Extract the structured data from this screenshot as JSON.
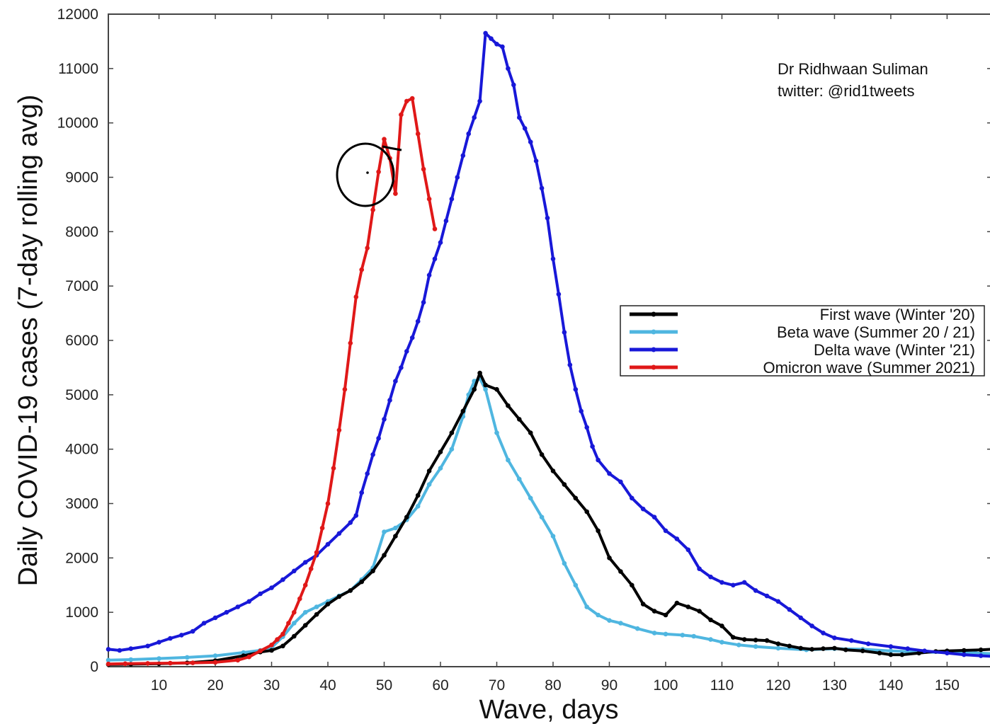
{
  "chart_data": {
    "type": "line",
    "title": "",
    "xlabel": "Wave, days",
    "ylabel": "Daily COVID-19 cases (7-day rolling avg)",
    "xlim": [
      1,
      158
    ],
    "ylim": [
      0,
      12000
    ],
    "xticks": [
      10,
      20,
      30,
      40,
      50,
      60,
      70,
      80,
      90,
      100,
      110,
      120,
      130,
      140,
      150
    ],
    "yticks": [
      0,
      1000,
      2000,
      3000,
      4000,
      5000,
      6000,
      7000,
      8000,
      9000,
      10000,
      11000,
      12000
    ],
    "grid": false,
    "legend_position": "right",
    "credit": [
      "Dr Ridhwaan Suliman",
      "twitter: @rid1tweets"
    ],
    "annotation": "hand-drawn circle around the first Omicron peak near day 47",
    "series": [
      {
        "name": "First wave (Winter '20)",
        "color": "#000000",
        "points": [
          [
            1,
            40
          ],
          [
            5,
            45
          ],
          [
            10,
            55
          ],
          [
            15,
            70
          ],
          [
            20,
            110
          ],
          [
            25,
            200
          ],
          [
            28,
            270
          ],
          [
            30,
            300
          ],
          [
            32,
            380
          ],
          [
            34,
            560
          ],
          [
            36,
            760
          ],
          [
            38,
            960
          ],
          [
            40,
            1150
          ],
          [
            42,
            1290
          ],
          [
            44,
            1400
          ],
          [
            46,
            1560
          ],
          [
            48,
            1760
          ],
          [
            50,
            2050
          ],
          [
            52,
            2400
          ],
          [
            54,
            2750
          ],
          [
            56,
            3150
          ],
          [
            58,
            3600
          ],
          [
            60,
            3950
          ],
          [
            62,
            4300
          ],
          [
            64,
            4700
          ],
          [
            66,
            5100
          ],
          [
            67,
            5400
          ],
          [
            68,
            5180
          ],
          [
            70,
            5100
          ],
          [
            72,
            4800
          ],
          [
            74,
            4550
          ],
          [
            76,
            4300
          ],
          [
            78,
            3900
          ],
          [
            80,
            3600
          ],
          [
            82,
            3350
          ],
          [
            84,
            3100
          ],
          [
            86,
            2850
          ],
          [
            88,
            2500
          ],
          [
            90,
            2000
          ],
          [
            92,
            1750
          ],
          [
            94,
            1500
          ],
          [
            96,
            1150
          ],
          [
            98,
            1020
          ],
          [
            100,
            950
          ],
          [
            102,
            1170
          ],
          [
            104,
            1100
          ],
          [
            106,
            1020
          ],
          [
            108,
            860
          ],
          [
            110,
            750
          ],
          [
            112,
            540
          ],
          [
            114,
            500
          ],
          [
            116,
            490
          ],
          [
            118,
            480
          ],
          [
            120,
            420
          ],
          [
            122,
            380
          ],
          [
            124,
            340
          ],
          [
            126,
            320
          ],
          [
            128,
            330
          ],
          [
            130,
            340
          ],
          [
            132,
            310
          ],
          [
            135,
            290
          ],
          [
            138,
            250
          ],
          [
            140,
            220
          ],
          [
            142,
            220
          ],
          [
            145,
            250
          ],
          [
            148,
            280
          ],
          [
            150,
            290
          ],
          [
            153,
            300
          ],
          [
            156,
            310
          ],
          [
            158,
            320
          ]
        ]
      },
      {
        "name": "Beta wave (Summer 20 / 21)",
        "color": "#4fb6e0",
        "points": [
          [
            1,
            120
          ],
          [
            5,
            130
          ],
          [
            10,
            150
          ],
          [
            15,
            170
          ],
          [
            20,
            200
          ],
          [
            25,
            260
          ],
          [
            28,
            300
          ],
          [
            30,
            350
          ],
          [
            32,
            550
          ],
          [
            34,
            800
          ],
          [
            36,
            1000
          ],
          [
            38,
            1100
          ],
          [
            40,
            1200
          ],
          [
            42,
            1300
          ],
          [
            44,
            1400
          ],
          [
            46,
            1600
          ],
          [
            48,
            1820
          ],
          [
            50,
            2480
          ],
          [
            52,
            2550
          ],
          [
            54,
            2700
          ],
          [
            56,
            2950
          ],
          [
            58,
            3350
          ],
          [
            60,
            3650
          ],
          [
            62,
            4000
          ],
          [
            64,
            4600
          ],
          [
            65,
            5000
          ],
          [
            66,
            5250
          ],
          [
            67,
            5300
          ],
          [
            68,
            5100
          ],
          [
            70,
            4300
          ],
          [
            72,
            3800
          ],
          [
            74,
            3450
          ],
          [
            76,
            3100
          ],
          [
            78,
            2750
          ],
          [
            80,
            2400
          ],
          [
            82,
            1900
          ],
          [
            84,
            1500
          ],
          [
            86,
            1100
          ],
          [
            88,
            950
          ],
          [
            90,
            850
          ],
          [
            92,
            800
          ],
          [
            95,
            700
          ],
          [
            98,
            620
          ],
          [
            100,
            600
          ],
          [
            103,
            580
          ],
          [
            105,
            560
          ],
          [
            108,
            500
          ],
          [
            110,
            450
          ],
          [
            113,
            400
          ],
          [
            116,
            370
          ],
          [
            120,
            340
          ],
          [
            125,
            310
          ],
          [
            130,
            330
          ],
          [
            135,
            320
          ],
          [
            140,
            290
          ],
          [
            145,
            270
          ],
          [
            150,
            260
          ],
          [
            155,
            250
          ],
          [
            158,
            240
          ]
        ]
      },
      {
        "name": "Delta wave (Winter '21)",
        "color": "#1818d8",
        "points": [
          [
            1,
            320
          ],
          [
            3,
            300
          ],
          [
            5,
            330
          ],
          [
            8,
            380
          ],
          [
            10,
            450
          ],
          [
            12,
            520
          ],
          [
            14,
            580
          ],
          [
            16,
            650
          ],
          [
            18,
            800
          ],
          [
            20,
            900
          ],
          [
            22,
            1000
          ],
          [
            24,
            1100
          ],
          [
            26,
            1200
          ],
          [
            28,
            1340
          ],
          [
            30,
            1450
          ],
          [
            32,
            1600
          ],
          [
            34,
            1760
          ],
          [
            36,
            1920
          ],
          [
            38,
            2050
          ],
          [
            40,
            2250
          ],
          [
            42,
            2450
          ],
          [
            44,
            2650
          ],
          [
            45,
            2780
          ],
          [
            46,
            3200
          ],
          [
            47,
            3550
          ],
          [
            48,
            3900
          ],
          [
            49,
            4200
          ],
          [
            50,
            4550
          ],
          [
            51,
            4900
          ],
          [
            52,
            5250
          ],
          [
            53,
            5500
          ],
          [
            54,
            5800
          ],
          [
            55,
            6050
          ],
          [
            56,
            6350
          ],
          [
            57,
            6700
          ],
          [
            58,
            7200
          ],
          [
            59,
            7500
          ],
          [
            60,
            7800
          ],
          [
            61,
            8200
          ],
          [
            62,
            8600
          ],
          [
            63,
            9000
          ],
          [
            64,
            9400
          ],
          [
            65,
            9800
          ],
          [
            66,
            10100
          ],
          [
            67,
            10400
          ],
          [
            68,
            11650
          ],
          [
            69,
            11550
          ],
          [
            70,
            11450
          ],
          [
            71,
            11400
          ],
          [
            72,
            11000
          ],
          [
            73,
            10700
          ],
          [
            74,
            10100
          ],
          [
            75,
            9900
          ],
          [
            76,
            9650
          ],
          [
            77,
            9300
          ],
          [
            78,
            8800
          ],
          [
            79,
            8250
          ],
          [
            80,
            7500
          ],
          [
            81,
            6850
          ],
          [
            82,
            6150
          ],
          [
            83,
            5550
          ],
          [
            84,
            5100
          ],
          [
            85,
            4700
          ],
          [
            86,
            4400
          ],
          [
            87,
            4050
          ],
          [
            88,
            3800
          ],
          [
            90,
            3550
          ],
          [
            92,
            3400
          ],
          [
            94,
            3100
          ],
          [
            96,
            2900
          ],
          [
            98,
            2750
          ],
          [
            100,
            2500
          ],
          [
            102,
            2350
          ],
          [
            104,
            2150
          ],
          [
            106,
            1800
          ],
          [
            108,
            1650
          ],
          [
            110,
            1550
          ],
          [
            112,
            1500
          ],
          [
            114,
            1550
          ],
          [
            116,
            1400
          ],
          [
            118,
            1300
          ],
          [
            120,
            1200
          ],
          [
            122,
            1050
          ],
          [
            124,
            900
          ],
          [
            126,
            750
          ],
          [
            128,
            620
          ],
          [
            130,
            530
          ],
          [
            133,
            480
          ],
          [
            136,
            420
          ],
          [
            140,
            370
          ],
          [
            143,
            330
          ],
          [
            146,
            290
          ],
          [
            150,
            250
          ],
          [
            153,
            220
          ],
          [
            156,
            200
          ],
          [
            158,
            190
          ]
        ]
      },
      {
        "name": "Omicron wave (Summer 2021)",
        "color": "#e01818",
        "points": [
          [
            1,
            50
          ],
          [
            4,
            55
          ],
          [
            8,
            60
          ],
          [
            12,
            65
          ],
          [
            16,
            70
          ],
          [
            20,
            80
          ],
          [
            24,
            120
          ],
          [
            26,
            180
          ],
          [
            28,
            290
          ],
          [
            30,
            400
          ],
          [
            31,
            500
          ],
          [
            32,
            600
          ],
          [
            33,
            800
          ],
          [
            34,
            1000
          ],
          [
            35,
            1250
          ],
          [
            36,
            1500
          ],
          [
            37,
            1800
          ],
          [
            38,
            2100
          ],
          [
            39,
            2550
          ],
          [
            40,
            3000
          ],
          [
            41,
            3650
          ],
          [
            42,
            4350
          ],
          [
            43,
            5100
          ],
          [
            44,
            5950
          ],
          [
            45,
            6800
          ],
          [
            46,
            7300
          ],
          [
            47,
            7700
          ],
          [
            48,
            8400
          ],
          [
            49,
            9100
          ],
          [
            50,
            9700
          ],
          [
            51,
            9350
          ],
          [
            52,
            8700
          ],
          [
            53,
            10150
          ],
          [
            54,
            10400
          ],
          [
            55,
            10450
          ],
          [
            56,
            9800
          ],
          [
            57,
            9150
          ],
          [
            58,
            8600
          ],
          [
            59,
            8050
          ]
        ]
      }
    ]
  }
}
